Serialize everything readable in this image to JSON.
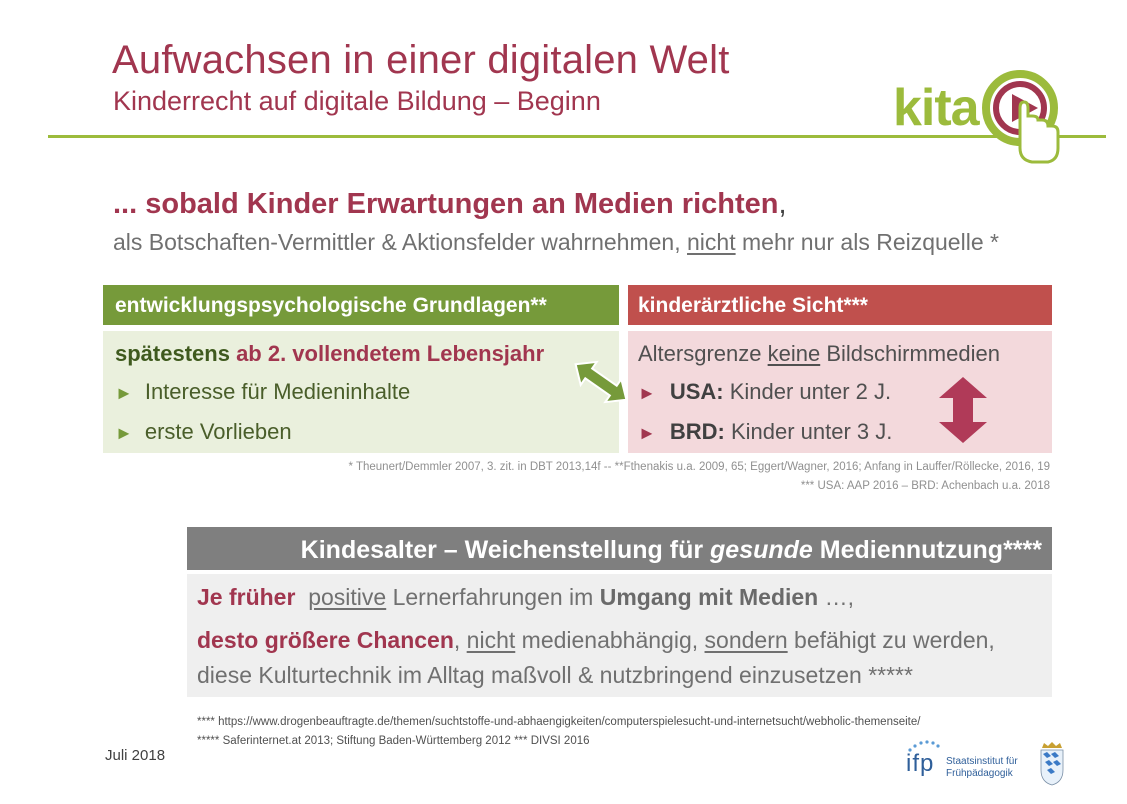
{
  "header": {
    "title": "Aufwachsen in einer digitalen Welt",
    "subtitle": "Kinderrecht auf digitale Bildung – Beginn",
    "logo_text": "kita"
  },
  "headline": {
    "main": "... sobald Kinder Erwartungen an Medien richten",
    "comma": ",",
    "sub_part1": "als Botschaften-Vermittler & Aktionsfelder wahrnehmen, ",
    "sub_underlined": "nicht",
    "sub_part2": " mehr nur als Reizquelle *"
  },
  "left_box": {
    "heading": "entwicklungspsychologische Grundlagen**",
    "line1_prefix": "spätestens ",
    "line1_highlight": "ab 2. vollendetem Lebensjahr",
    "bullets": [
      "Interesse für Medieninhalte",
      "erste Vorlieben"
    ],
    "bullet_glyph": "►"
  },
  "right_box": {
    "heading": "kinderärztliche Sicht***",
    "line1_part1": "Altersgrenze ",
    "line1_underlined": "keine",
    "line1_part2": " Bildschirmmedien",
    "bullets": [
      {
        "label": "USA:",
        "text": " Kinder unter 2 J."
      },
      {
        "label": "BRD:",
        "text": " Kinder unter 3 J."
      }
    ],
    "bullet_glyph": "►"
  },
  "footnotes_top": [
    "* Theunert/Demmler 2007, 3. zit. in DBT 2013,14f  --  **Fthenakis u.a. 2009, 65; Eggert/Wagner, 2016; Anfang in Lauffer/Röllecke, 2016, 19",
    "*** USA: AAP 2016 – BRD: Achenbach u.a. 2018"
  ],
  "grey_box": {
    "heading_part1": "Kindesalter – Weichenstellung für ",
    "heading_italic": "gesunde",
    "heading_part2": " Mediennutzung****",
    "line1_red": "Je früher",
    "line1_underlined": "positive",
    "line1_part1": "  Lernerfahrungen im ",
    "line1_bold": "Umgang mit Medien",
    "line1_end": " …,",
    "line2_red": "desto größere Chancen",
    "line2_part1": ", ",
    "line2_underlined1": "nicht",
    "line2_part2": " medienabhängig, ",
    "line2_underlined2": "sondern",
    "line2_part3": " befähigt zu werden,",
    "line3": "diese Kulturtechnik im Alltag maßvoll & nutzbringend einzusetzen *****"
  },
  "footnotes_bottom": [
    "**** https://www.drogenbeauftragte.de/themen/suchtstoffe-und-abhaengigkeiten/computerspielesucht-und-internetsucht/webholic-themenseite/",
    "***** Saferinternet.at 2013; Stiftung Baden-Württemberg 2012 *** DIVSI 2016"
  ],
  "date": "Juli 2018",
  "ifp_logo": {
    "acronym": "ifp",
    "name_line1": "Staatsinstitut für",
    "name_line2": "Frühpädagogik"
  },
  "colors": {
    "accent_red": "#a1364f",
    "green": "#769a3a",
    "rule_green": "#9cbb3c",
    "red_head": "#c0504d",
    "grey_head": "#7f7f7f"
  }
}
